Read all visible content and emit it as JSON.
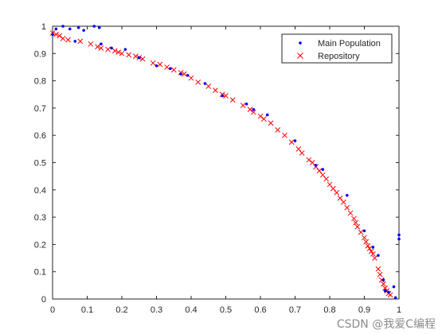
{
  "chart_data": {
    "type": "scatter",
    "xlim": [
      0,
      1
    ],
    "ylim": [
      0,
      1
    ],
    "xticks": [
      "0",
      "0.1",
      "0.2",
      "0.3",
      "0.4",
      "0.5",
      "0.6",
      "0.7",
      "0.8",
      "0.9",
      "1"
    ],
    "yticks": [
      "0",
      "0.1",
      "0.2",
      "0.3",
      "0.4",
      "0.5",
      "0.6",
      "0.7",
      "0.8",
      "0.9",
      "1"
    ],
    "grid": false,
    "legend_position": "top-right",
    "series": [
      {
        "name": "Main Population",
        "marker": "dot",
        "color": "#0000ff",
        "points": [
          [
            0.0,
            0.97
          ],
          [
            0.01,
            0.99
          ],
          [
            0.03,
            1.0
          ],
          [
            0.05,
            0.99
          ],
          [
            0.065,
            0.945
          ],
          [
            0.075,
            0.995
          ],
          [
            0.09,
            0.985
          ],
          [
            0.12,
            1.0
          ],
          [
            0.135,
            0.995
          ],
          [
            0.14,
            0.935
          ],
          [
            0.17,
            0.92
          ],
          [
            0.21,
            0.915
          ],
          [
            0.25,
            0.885
          ],
          [
            0.3,
            0.855
          ],
          [
            0.34,
            0.845
          ],
          [
            0.37,
            0.825
          ],
          [
            0.39,
            0.82
          ],
          [
            0.44,
            0.79
          ],
          [
            0.49,
            0.745
          ],
          [
            0.56,
            0.715
          ],
          [
            0.58,
            0.695
          ],
          [
            0.62,
            0.675
          ],
          [
            0.7,
            0.58
          ],
          [
            0.76,
            0.49
          ],
          [
            0.78,
            0.475
          ],
          [
            0.85,
            0.38
          ],
          [
            0.9,
            0.25
          ],
          [
            0.925,
            0.19
          ],
          [
            0.94,
            0.16
          ],
          [
            0.955,
            0.07
          ],
          [
            0.96,
            0.03
          ],
          [
            0.97,
            0.025
          ],
          [
            0.985,
            0.045
          ],
          [
            0.99,
            0.005
          ],
          [
            1.0,
            0.22
          ],
          [
            1.0,
            0.235
          ]
        ]
      },
      {
        "name": "Repository",
        "marker": "x",
        "color": "#ff0000",
        "points": [
          [
            0.0,
            0.975
          ],
          [
            0.01,
            0.97
          ],
          [
            0.02,
            0.965
          ],
          [
            0.03,
            0.955
          ],
          [
            0.045,
            0.95
          ],
          [
            0.08,
            0.945
          ],
          [
            0.11,
            0.935
          ],
          [
            0.13,
            0.925
          ],
          [
            0.14,
            0.92
          ],
          [
            0.16,
            0.915
          ],
          [
            0.18,
            0.91
          ],
          [
            0.19,
            0.905
          ],
          [
            0.2,
            0.9
          ],
          [
            0.22,
            0.895
          ],
          [
            0.24,
            0.89
          ],
          [
            0.25,
            0.885
          ],
          [
            0.26,
            0.88
          ],
          [
            0.29,
            0.865
          ],
          [
            0.31,
            0.86
          ],
          [
            0.33,
            0.85
          ],
          [
            0.35,
            0.84
          ],
          [
            0.37,
            0.83
          ],
          [
            0.38,
            0.825
          ],
          [
            0.4,
            0.81
          ],
          [
            0.42,
            0.795
          ],
          [
            0.45,
            0.78
          ],
          [
            0.47,
            0.765
          ],
          [
            0.49,
            0.75
          ],
          [
            0.5,
            0.745
          ],
          [
            0.52,
            0.73
          ],
          [
            0.55,
            0.71
          ],
          [
            0.57,
            0.695
          ],
          [
            0.58,
            0.685
          ],
          [
            0.6,
            0.67
          ],
          [
            0.61,
            0.66
          ],
          [
            0.63,
            0.645
          ],
          [
            0.65,
            0.62
          ],
          [
            0.67,
            0.6
          ],
          [
            0.69,
            0.575
          ],
          [
            0.71,
            0.55
          ],
          [
            0.72,
            0.535
          ],
          [
            0.74,
            0.51
          ],
          [
            0.75,
            0.5
          ],
          [
            0.76,
            0.485
          ],
          [
            0.77,
            0.47
          ],
          [
            0.78,
            0.455
          ],
          [
            0.79,
            0.44
          ],
          [
            0.8,
            0.42
          ],
          [
            0.81,
            0.405
          ],
          [
            0.82,
            0.39
          ],
          [
            0.83,
            0.37
          ],
          [
            0.84,
            0.355
          ],
          [
            0.85,
            0.335
          ],
          [
            0.86,
            0.315
          ],
          [
            0.87,
            0.295
          ],
          [
            0.875,
            0.28
          ],
          [
            0.88,
            0.265
          ],
          [
            0.89,
            0.245
          ],
          [
            0.9,
            0.225
          ],
          [
            0.905,
            0.21
          ],
          [
            0.91,
            0.195
          ],
          [
            0.915,
            0.185
          ],
          [
            0.92,
            0.175
          ],
          [
            0.925,
            0.165
          ],
          [
            0.93,
            0.15
          ],
          [
            0.94,
            0.11
          ],
          [
            0.945,
            0.09
          ],
          [
            0.95,
            0.07
          ],
          [
            0.955,
            0.055
          ],
          [
            0.96,
            0.04
          ],
          [
            0.965,
            0.03
          ],
          [
            0.97,
            0.02
          ],
          [
            0.975,
            0.015
          ]
        ]
      }
    ]
  },
  "watermark": "CSDN @我爱C编程"
}
